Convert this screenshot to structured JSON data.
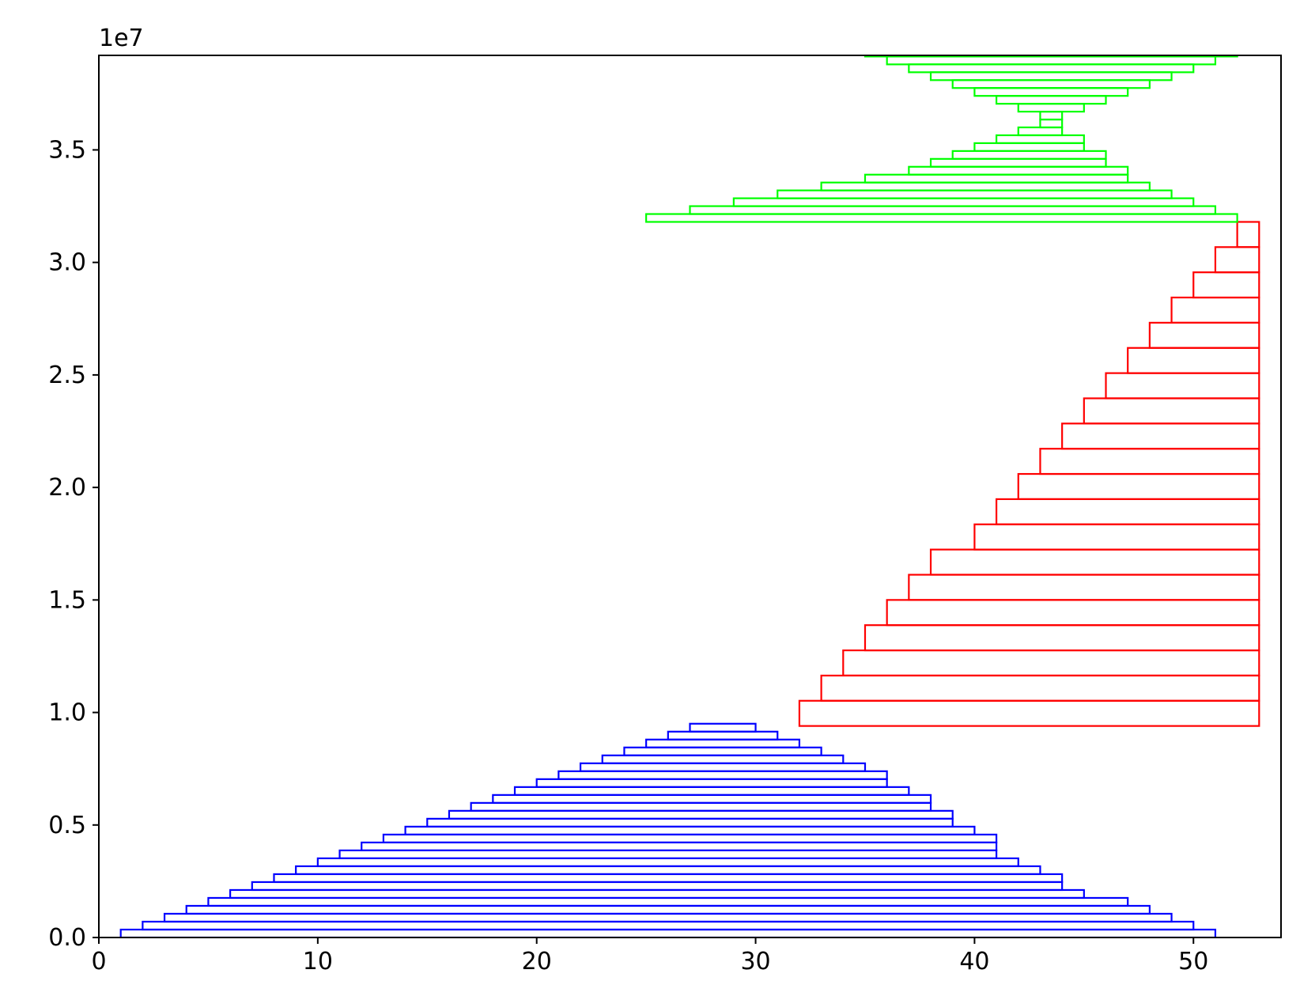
{
  "chart_data": {
    "type": "line",
    "title": "",
    "xlabel": "",
    "ylabel": "",
    "xlim": [
      0,
      54
    ],
    "ylim": [
      0,
      39200000
    ],
    "x_ticks": [
      0,
      10,
      20,
      30,
      40,
      50
    ],
    "x_tick_labels": [
      "0",
      "10",
      "20",
      "30",
      "40",
      "50"
    ],
    "y_ticks": [
      0,
      5000000,
      10000000,
      15000000,
      20000000,
      25000000,
      30000000,
      35000000
    ],
    "y_tick_labels": [
      "0.0",
      "0.5",
      "1.0",
      "1.5",
      "2.0",
      "2.5",
      "3.0",
      "3.5"
    ],
    "y_offset_label": "1e7",
    "grid": false,
    "series": [
      {
        "color": "#0000ff",
        "nested_rectangles": {
          "pairs": [
            [
              1,
              51
            ],
            [
              2,
              50
            ],
            [
              3,
              49
            ],
            [
              4,
              48
            ],
            [
              5,
              47
            ],
            [
              6,
              45
            ],
            [
              7,
              44
            ],
            [
              8,
              44
            ],
            [
              9,
              43
            ],
            [
              10,
              42
            ],
            [
              11,
              41
            ],
            [
              12,
              41
            ],
            [
              13,
              41
            ],
            [
              14,
              40
            ],
            [
              15,
              39
            ],
            [
              16,
              39
            ],
            [
              17,
              38
            ],
            [
              18,
              38
            ],
            [
              19,
              37
            ],
            [
              20,
              36
            ],
            [
              21,
              36
            ],
            [
              22,
              35
            ],
            [
              23,
              34
            ],
            [
              24,
              33
            ],
            [
              25,
              32
            ],
            [
              26,
              31
            ],
            [
              27,
              30
            ]
          ],
          "y_start": 0,
          "y_top": 9500000
        }
      },
      {
        "color": "#ff0000",
        "nested_rectangles": {
          "pairs": [
            [
              32,
              53
            ],
            [
              33,
              53
            ],
            [
              34,
              53
            ],
            [
              35,
              53
            ],
            [
              36,
              53
            ],
            [
              37,
              53
            ],
            [
              38,
              53
            ],
            [
              40,
              53
            ],
            [
              41,
              53
            ],
            [
              42,
              53
            ],
            [
              43,
              53
            ],
            [
              44,
              53
            ],
            [
              45,
              53
            ],
            [
              46,
              53
            ],
            [
              47,
              53
            ],
            [
              48,
              53
            ],
            [
              49,
              53
            ],
            [
              50,
              53
            ],
            [
              51,
              53
            ],
            [
              52,
              53
            ]
          ],
          "y_start": 9400000,
          "y_top": 31800000
        }
      },
      {
        "color": "#00ff00",
        "nested_rectangles": {
          "pairs": [
            [
              25,
              52
            ],
            [
              27,
              51
            ],
            [
              29,
              50
            ],
            [
              31,
              49
            ],
            [
              33,
              48
            ],
            [
              35,
              47
            ],
            [
              37,
              47
            ],
            [
              38,
              46
            ],
            [
              39,
              46
            ],
            [
              40,
              45
            ],
            [
              41,
              45
            ],
            [
              42,
              44
            ],
            [
              43,
              44
            ],
            [
              44,
              43
            ],
            [
              45,
              42
            ],
            [
              46,
              41
            ],
            [
              47,
              40
            ],
            [
              48,
              39
            ],
            [
              49,
              38
            ],
            [
              50,
              37
            ],
            [
              51,
              36
            ],
            [
              52,
              35
            ]
          ],
          "y_start": 31800000,
          "y_top": 39500000
        }
      }
    ]
  }
}
